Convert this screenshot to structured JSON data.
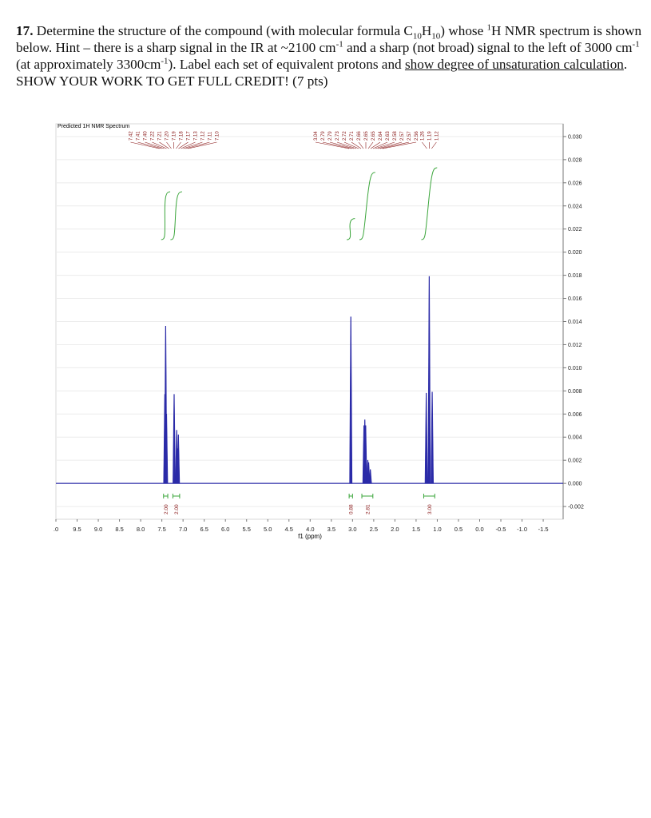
{
  "question": {
    "number": "17.",
    "parts": [
      "Determine the structure of the compound (with molecular formula C",
      "10",
      "H",
      "10",
      ") whose ",
      "1",
      "H NMR spectrum is shown below.  Hint – there is a sharp signal in the IR at ~2100 cm",
      "-1",
      " and a sharp (not broad) signal to the left of 3000 cm",
      "-1",
      " (at approximately 3300cm",
      "-1",
      ").  Label each set of equivalent protons and ",
      "show degree of unsaturation calculation",
      ".  SHOW YOUR WORK TO GET FULL CREDIT! (7 pts)"
    ]
  },
  "chart_data": {
    "type": "nmr",
    "title": "Predicted 1H NMR Spectrum",
    "xlabel": "f1 (ppm)",
    "color": "#2b2ba8",
    "integral_color": "#3aa53a",
    "label_color": "#8a1a1a",
    "xlim": [
      10.0,
      -1.97
    ],
    "ylim": [
      -0.0031,
      0.0311
    ],
    "grid": true,
    "xticks": [
      {
        "value": 10.0,
        "label": ".0"
      },
      9.5,
      {
        "value": 9.0,
        "label": "9.0"
      },
      8.5,
      {
        "value": 8.0,
        "label": "8.0"
      },
      7.5,
      {
        "value": 7.0,
        "label": "7.0"
      },
      6.5,
      {
        "value": 6.0,
        "label": "6.0"
      },
      5.5,
      {
        "value": 5.0,
        "label": "5.0"
      },
      4.5,
      {
        "value": 4.0,
        "label": "4.0"
      },
      3.5,
      {
        "value": 3.0,
        "label": "3.0"
      },
      2.5,
      {
        "value": 2.0,
        "label": "2.0"
      },
      1.5,
      {
        "value": 1.0,
        "label": "1.0"
      },
      0.5,
      {
        "value": 0.0,
        "label": "0.0"
      },
      -0.5,
      {
        "value": -1.0,
        "label": "-1.0"
      },
      -1.5
    ],
    "yticks": [
      -0.002,
      {
        "value": 0.0,
        "label": "0.000"
      },
      0.002,
      0.004,
      0.006,
      0.008,
      {
        "value": 0.01,
        "label": "0.010"
      },
      0.012,
      0.014,
      0.016,
      0.018,
      {
        "value": 0.02,
        "label": "0.020"
      },
      0.022,
      0.024,
      0.026,
      0.028,
      {
        "value": 0.03,
        "label": "0.030"
      }
    ],
    "peaks": [
      {
        "ppm": 7.43,
        "height": 0.0077
      },
      {
        "ppm": 7.41,
        "height": 0.0136
      },
      {
        "ppm": 7.39,
        "height": 0.006
      },
      {
        "ppm": 7.21,
        "height": 0.0077
      },
      {
        "ppm": 7.15,
        "height": 0.0046
      },
      {
        "ppm": 7.13,
        "height": 0.003
      },
      {
        "ppm": 7.11,
        "height": 0.0042
      },
      {
        "ppm": 3.04,
        "height": 0.0144
      },
      {
        "ppm": 2.73,
        "height": 0.005
      },
      {
        "ppm": 2.71,
        "height": 0.0055
      },
      {
        "ppm": 2.69,
        "height": 0.005
      },
      {
        "ppm": 2.64,
        "height": 0.002
      },
      {
        "ppm": 2.62,
        "height": 0.0018
      },
      {
        "ppm": 2.58,
        "height": 0.0012
      },
      {
        "ppm": 1.26,
        "height": 0.0078
      },
      {
        "ppm": 1.19,
        "height": 0.0179
      },
      {
        "ppm": 1.12,
        "height": 0.0079
      }
    ],
    "peak_labels": [
      [
        "7.42",
        "7.41",
        "7.40",
        "7.22",
        "7.21",
        "7.20",
        "7.19",
        "7.18",
        "7.17",
        "7.13",
        "7.12",
        "7.11",
        "7.10"
      ],
      [
        "3.04",
        "2.79",
        "2.79",
        "2.73",
        "2.72",
        "2.71",
        "2.66",
        "2.65",
        "2.65",
        "2.64",
        "2.63",
        "2.58",
        "2.57",
        "2.57",
        "2.56"
      ],
      [
        "1.26",
        "1.19",
        "1.12"
      ]
    ],
    "integrals": [
      {
        "label": "2.00",
        "range": [
          7.46,
          7.36
        ]
      },
      {
        "label": "2.00",
        "range": [
          7.24,
          7.08
        ]
      },
      {
        "label": "0.88",
        "range": [
          3.08,
          3.0
        ]
      },
      {
        "label": "2.81",
        "range": [
          2.78,
          2.52
        ]
      },
      {
        "label": "3.00",
        "range": [
          1.32,
          1.06
        ]
      }
    ]
  }
}
